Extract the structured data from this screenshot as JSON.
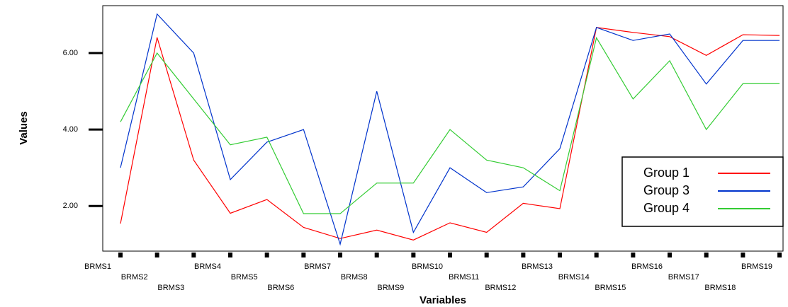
{
  "chart_data": {
    "type": "line",
    "x_label": "Variables",
    "y_label": "Values",
    "categories": [
      "BRMS1",
      "BRMS2",
      "BRMS3",
      "BRMS4",
      "BRMS5",
      "BRMS6",
      "BRMS7",
      "BRMS8",
      "BRMS9",
      "BRMS10",
      "BRMS11",
      "BRMS12",
      "BRMS13",
      "BRMS14",
      "BRMS15",
      "BRMS16",
      "BRMS17",
      "BRMS18",
      "BRMS19"
    ],
    "series": [
      {
        "name": "Group 1",
        "color": "#ff0000",
        "values": [
          1.54,
          6.41,
          3.2,
          1.81,
          2.17,
          1.44,
          1.15,
          1.37,
          1.11,
          1.56,
          1.31,
          2.07,
          1.93,
          6.67,
          6.54,
          6.43,
          5.94,
          6.48,
          6.46
        ]
      },
      {
        "name": "Group 3",
        "color": "#0033cc",
        "values": [
          3.0,
          7.02,
          6.0,
          2.69,
          3.67,
          4.0,
          1.0,
          5.0,
          1.31,
          3.0,
          2.35,
          2.5,
          3.5,
          6.67,
          6.33,
          6.5,
          5.19,
          6.33,
          6.33
        ]
      },
      {
        "name": "Group 4",
        "color": "#33cc33",
        "values": [
          4.2,
          6.0,
          4.8,
          3.6,
          3.8,
          1.8,
          1.8,
          2.6,
          2.6,
          4.0,
          3.2,
          3.0,
          2.4,
          6.4,
          4.8,
          5.8,
          4.0,
          5.2,
          5.2
        ]
      }
    ],
    "ylim": [
      0.82,
      7.24
    ],
    "yticks": [
      {
        "value": 2,
        "label": "2.00"
      },
      {
        "value": 4,
        "label": "4.00"
      },
      {
        "value": 6,
        "label": "6.00"
      }
    ],
    "legend": "lower-right"
  }
}
